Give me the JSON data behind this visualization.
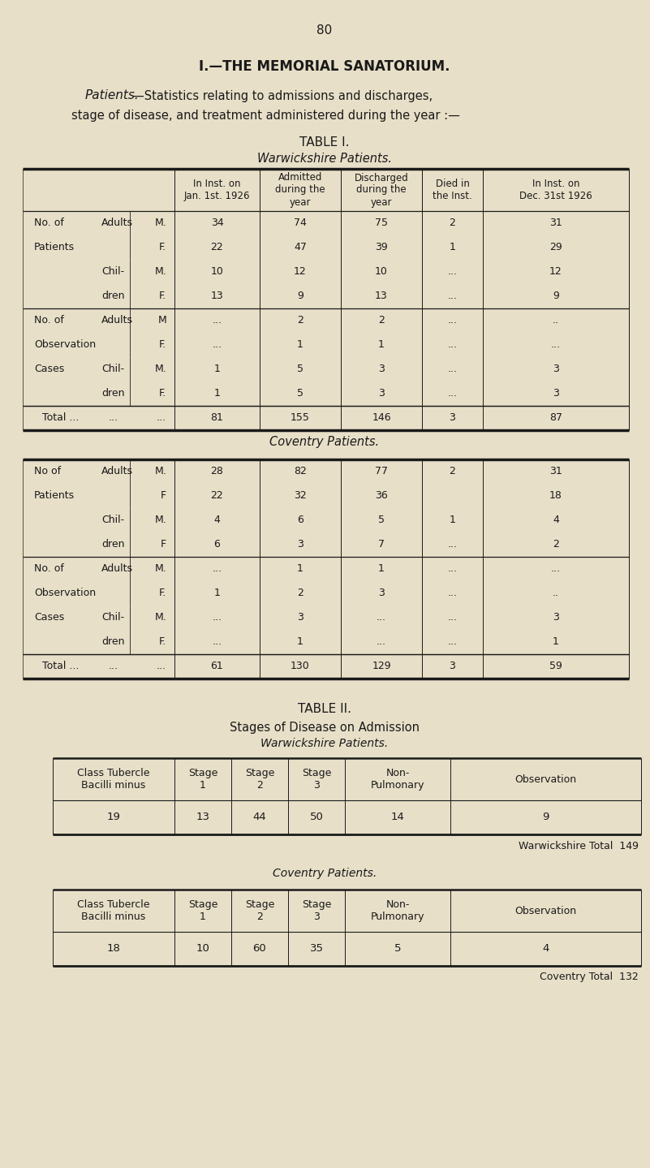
{
  "page_number": "80",
  "main_title": "I.—THE MEMORIAL SANATORIUM.",
  "subtitle_line1_italic": "Patients.",
  "subtitle_line1_rest": "—Statistics relating to admissions and discharges,",
  "subtitle_line2": "stage of disease, and treatment administered during the year :—",
  "table1_title": "TABLE I.",
  "table1_subtitle": "Warwickshire Patients.",
  "table1_col_headers": [
    "In Inst. on\nJan. 1st. 1926",
    "Admitted\nduring the\nyear",
    "Discharged\nduring the\nyear",
    "Died in\nthe Inst.",
    "In Inst. on\nDec. 31st 1926"
  ],
  "warwick_rows": [
    {
      "label1": "No. of",
      "label2": "Adults",
      "label3": "M.",
      "cols": [
        "34",
        "74",
        "75",
        "2",
        "31"
      ]
    },
    {
      "label1": "Patients",
      "label2": "",
      "label3": "F.",
      "cols": [
        "22",
        "47",
        "39",
        "1",
        "29"
      ]
    },
    {
      "label1": "",
      "label2": "Chil-",
      "label3": "M.",
      "cols": [
        "10",
        "12",
        "10",
        "...",
        "12"
      ]
    },
    {
      "label1": "",
      "label2": "dren",
      "label3": "F.",
      "cols": [
        "13",
        "9",
        "13",
        "...",
        "9"
      ]
    },
    {
      "label1": "No. of",
      "label2": "Adults",
      "label3": "M",
      "cols": [
        "...",
        "2",
        "2",
        "...",
        ".."
      ]
    },
    {
      "label1": "Observation",
      "label2": "",
      "label3": "F.",
      "cols": [
        "...",
        "1",
        "1",
        "...",
        "..."
      ]
    },
    {
      "label1": "Cases",
      "label2": "Chil-",
      "label3": "M.",
      "cols": [
        "1",
        "5",
        "3",
        "...",
        "3"
      ]
    },
    {
      "label1": "",
      "label2": "dren",
      "label3": "F.",
      "cols": [
        "1",
        "5",
        "3",
        "...",
        "3"
      ]
    },
    {
      "label1": "Total ...",
      "label2": "...",
      "label3": "...",
      "cols": [
        "81",
        "155",
        "146",
        "3",
        "87"
      ]
    }
  ],
  "coventry_subtitle": "Coventry Patients.",
  "coventry_rows": [
    {
      "label1": "No of",
      "label2": "Adults",
      "label3": "M.",
      "cols": [
        "28",
        "82",
        "77",
        "2",
        "31"
      ]
    },
    {
      "label1": "Patients",
      "label2": "",
      "label3": "F",
      "cols": [
        "22",
        "32",
        "36",
        "",
        "18"
      ]
    },
    {
      "label1": "",
      "label2": "Chil-",
      "label3": "M.",
      "cols": [
        "4",
        "6",
        "5",
        "1",
        "4"
      ]
    },
    {
      "label1": "",
      "label2": "dren",
      "label3": "F",
      "cols": [
        "6",
        "3",
        "7",
        "...",
        "2"
      ]
    },
    {
      "label1": "No. of",
      "label2": "Adults",
      "label3": "M.",
      "cols": [
        "...",
        "1",
        "1",
        "...",
        "..."
      ]
    },
    {
      "label1": "Observation",
      "label2": "",
      "label3": "F.",
      "cols": [
        "1",
        "2",
        "3",
        "...",
        ".."
      ]
    },
    {
      "label1": "Cases",
      "label2": "Chil-",
      "label3": "M.",
      "cols": [
        "...",
        "3",
        "...",
        "...",
        "3"
      ]
    },
    {
      "label1": "",
      "label2": "dren",
      "label3": "F.",
      "cols": [
        "...",
        "1",
        "...",
        "...",
        "1"
      ]
    },
    {
      "label1": "Total ...",
      "label2": "...",
      "label3": "...",
      "cols": [
        "61",
        "130",
        "129",
        "3",
        "59"
      ]
    }
  ],
  "table2_title": "TABLE II.",
  "table2_subtitle": "Stages of Disease on Admission",
  "warwick_table2_subtitle": "Warwickshire Patients.",
  "warwick_table2_headers": [
    "Class Tubercle\nBacilli minus",
    "Stage\n1",
    "Stage\n2",
    "Stage\n3",
    "Non-\nPulmonary",
    "Observation"
  ],
  "warwick_table2_values": [
    "19",
    "13",
    "44",
    "50",
    "14",
    "9"
  ],
  "warwick_total_text": "Warwickshire Total  149",
  "coventry_table2_subtitle": "Coventry Patients.",
  "coventry_table2_headers": [
    "Class Tubercle\nBacilli minus",
    "Stage\n1",
    "Stage\n2",
    "Stage\n3",
    "Non-\nPulmonary",
    "Observation"
  ],
  "coventry_table2_values": [
    "18",
    "10",
    "60",
    "35",
    "5",
    "4"
  ],
  "coventry_total_text": "Coventry Total  132",
  "bg_color": "#e8dfc8",
  "text_color": "#1a1a1a"
}
